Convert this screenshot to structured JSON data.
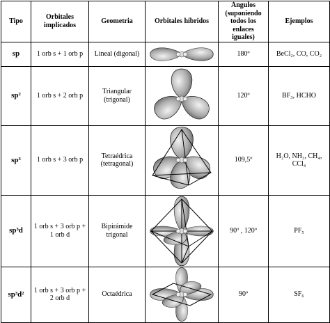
{
  "header": [
    "Tipo",
    "Orbitales implicados",
    "Geometria",
    "Orbitales híbridos",
    "Ángulos (suponiendo todos los enlaces iguales)",
    "Ejemplos"
  ],
  "rows": [
    {
      "tipo": "sp",
      "orbitales": "1 orb s + 1 orb p",
      "geometria": "Lineal (digonal)",
      "angulos": "180º",
      "ejemplos": "BeCl₂, CO, CO₂"
    },
    {
      "tipo": "sp²",
      "orbitales": "1 orb s + 2 orb p",
      "geometria": "Triangular (trigonal)",
      "angulos": "120º",
      "ejemplos": "BF₃, HCHO"
    },
    {
      "tipo": "sp³",
      "orbitales": "1 orb s + 3 orb p",
      "geometria": "Tetraédrica (tetragonal)",
      "angulos": "109,5º",
      "ejemplos": "H₂O, NH₃, CH₄, CCl₄"
    },
    {
      "tipo": "sp³d",
      "orbitales": "1 orb s + 3 orb p + 1 orb d",
      "geometria": "Bipirámide trigonal",
      "angulos": "90º , 120º",
      "ejemplos": "PF₅"
    },
    {
      "tipo": "sp³d²",
      "orbitales": "1 orb s + 3 orb p + 2 orb d",
      "geometria": "Octaédrica",
      "angulos": "90º",
      "ejemplos": "SF₆"
    }
  ]
}
